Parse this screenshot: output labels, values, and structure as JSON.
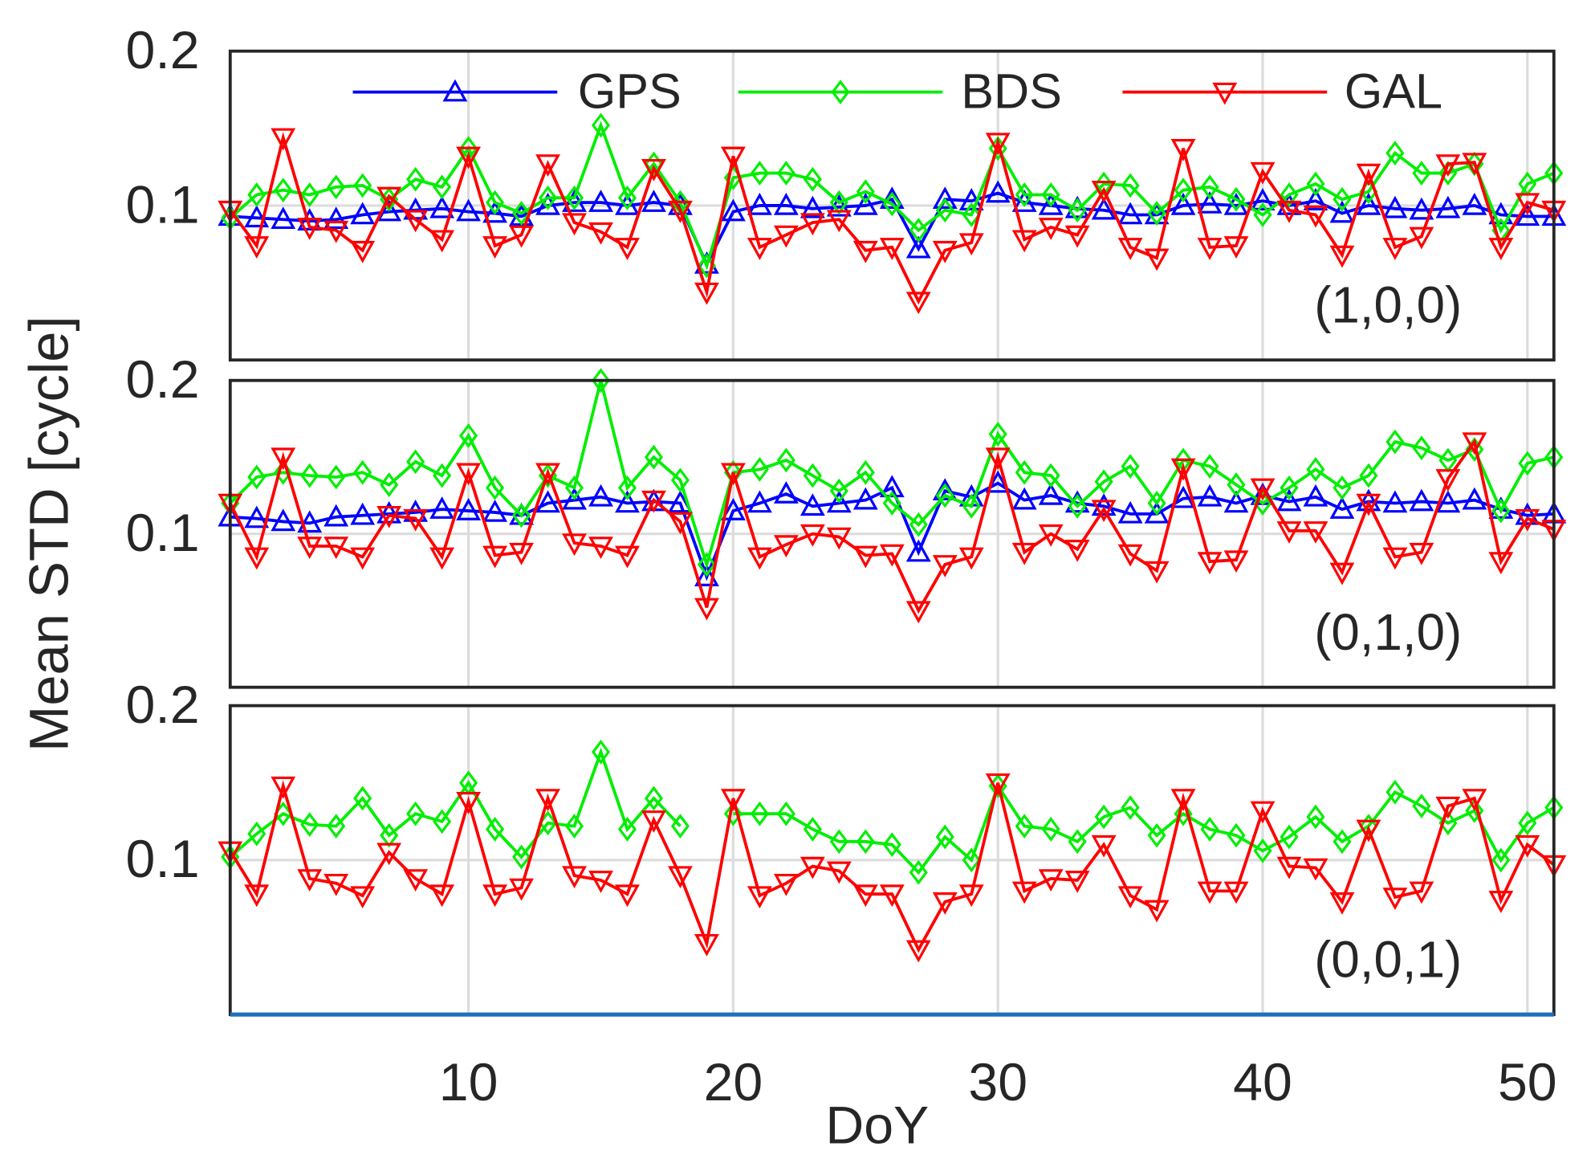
{
  "chart_data": [
    {
      "type": "line",
      "annotation": "(1,0,0)",
      "legend": "top",
      "xlim": [
        1,
        51
      ],
      "xticks": [
        10,
        20,
        30,
        40,
        50
      ],
      "ylim": [
        0,
        0.2
      ],
      "yticks": [
        0.1,
        0.2
      ],
      "grid": true,
      "x": [
        1,
        2,
        3,
        4,
        5,
        6,
        7,
        8,
        9,
        10,
        11,
        12,
        13,
        14,
        15,
        16,
        17,
        18,
        19,
        20,
        21,
        22,
        23,
        24,
        25,
        26,
        27,
        28,
        29,
        30,
        31,
        32,
        33,
        34,
        35,
        36,
        37,
        38,
        39,
        40,
        41,
        42,
        43,
        44,
        45,
        46,
        47,
        48,
        49,
        50,
        51
      ],
      "series": [
        {
          "name": "GPS",
          "color": "#0000ff",
          "marker": "^",
          "values": [
            0.093,
            0.092,
            0.091,
            0.09,
            0.091,
            0.094,
            0.096,
            0.097,
            0.098,
            0.096,
            0.095,
            0.093,
            0.1,
            0.102,
            0.102,
            0.1,
            0.102,
            0.1,
            0.062,
            0.096,
            0.1,
            0.1,
            0.098,
            0.099,
            0.1,
            0.104,
            0.072,
            0.104,
            0.103,
            0.108,
            0.102,
            0.1,
            0.098,
            0.097,
            0.094,
            0.094,
            0.1,
            0.101,
            0.1,
            0.103,
            0.1,
            0.103,
            0.095,
            0.1,
            0.098,
            0.097,
            0.098,
            0.1,
            0.094,
            0.093,
            0.093
          ]
        },
        {
          "name": "BDS",
          "color": "#00ee00",
          "marker": "d",
          "values": [
            0.092,
            0.107,
            0.11,
            0.107,
            0.112,
            0.113,
            0.104,
            0.117,
            0.112,
            0.137,
            0.102,
            0.095,
            0.105,
            0.105,
            0.152,
            0.105,
            0.127,
            0.102,
            0.061,
            0.118,
            0.121,
            0.121,
            0.117,
            0.102,
            0.109,
            0.101,
            0.084,
            0.097,
            0.094,
            0.137,
            0.107,
            0.107,
            0.097,
            0.114,
            0.113,
            0.095,
            0.11,
            0.112,
            0.104,
            0.094,
            0.107,
            0.114,
            0.104,
            0.109,
            0.134,
            0.121,
            0.121,
            0.127,
            0.084,
            0.114,
            0.121
          ]
        },
        {
          "name": "GAL",
          "color": "#ff0000",
          "marker": "v",
          "values": [
            0.097,
            0.074,
            0.144,
            0.086,
            0.084,
            0.071,
            0.106,
            0.091,
            0.078,
            0.132,
            0.074,
            0.081,
            0.127,
            0.089,
            0.083,
            0.073,
            0.124,
            0.097,
            0.044,
            0.132,
            0.073,
            0.081,
            0.089,
            0.091,
            0.071,
            0.073,
            0.038,
            0.071,
            0.076,
            0.141,
            0.078,
            0.086,
            0.081,
            0.11,
            0.073,
            0.066,
            0.137,
            0.073,
            0.074,
            0.122,
            0.097,
            0.094,
            0.068,
            0.121,
            0.073,
            0.08,
            0.127,
            0.128,
            0.073,
            0.102,
            0.097
          ]
        }
      ]
    },
    {
      "type": "line",
      "annotation": "(0,1,0)",
      "ylabel": "Mean STD [cycle]",
      "xlim": [
        1,
        51
      ],
      "xticks": [
        10,
        20,
        30,
        40,
        50
      ],
      "ylim": [
        0,
        0.2
      ],
      "yticks": [
        0.1,
        0.2
      ],
      "grid": true,
      "x": [
        1,
        2,
        3,
        4,
        5,
        6,
        7,
        8,
        9,
        10,
        11,
        12,
        13,
        14,
        15,
        16,
        17,
        18,
        19,
        20,
        21,
        22,
        23,
        24,
        25,
        26,
        27,
        28,
        29,
        30,
        31,
        32,
        33,
        34,
        35,
        36,
        37,
        38,
        39,
        40,
        41,
        42,
        43,
        44,
        45,
        46,
        47,
        48,
        49,
        50,
        51
      ],
      "series": [
        {
          "name": "GPS",
          "color": "#0000ff",
          "marker": "^",
          "values": [
            0.111,
            0.11,
            0.108,
            0.107,
            0.111,
            0.112,
            0.113,
            0.114,
            0.116,
            0.115,
            0.114,
            0.112,
            0.12,
            0.122,
            0.124,
            0.12,
            0.121,
            0.12,
            0.072,
            0.115,
            0.12,
            0.126,
            0.118,
            0.12,
            0.122,
            0.13,
            0.088,
            0.128,
            0.124,
            0.133,
            0.122,
            0.125,
            0.12,
            0.118,
            0.113,
            0.113,
            0.123,
            0.124,
            0.12,
            0.125,
            0.121,
            0.124,
            0.116,
            0.121,
            0.12,
            0.121,
            0.12,
            0.122,
            0.116,
            0.112,
            0.113
          ]
        },
        {
          "name": "BDS",
          "color": "#00ee00",
          "marker": "d",
          "values": [
            0.12,
            0.137,
            0.14,
            0.138,
            0.137,
            0.14,
            0.132,
            0.147,
            0.138,
            0.164,
            0.13,
            0.112,
            0.138,
            0.13,
            0.2,
            0.13,
            0.15,
            0.135,
            0.08,
            0.14,
            0.142,
            0.148,
            0.138,
            0.128,
            0.14,
            0.12,
            0.106,
            0.125,
            0.118,
            0.165,
            0.14,
            0.138,
            0.118,
            0.134,
            0.144,
            0.12,
            0.148,
            0.144,
            0.132,
            0.12,
            0.13,
            0.142,
            0.13,
            0.138,
            0.16,
            0.156,
            0.148,
            0.155,
            0.115,
            0.146,
            0.15
          ]
        },
        {
          "name": "GAL",
          "color": "#ff0000",
          "marker": "v",
          "values": [
            0.12,
            0.085,
            0.15,
            0.092,
            0.092,
            0.085,
            0.112,
            0.11,
            0.085,
            0.14,
            0.086,
            0.088,
            0.14,
            0.094,
            0.092,
            0.086,
            0.122,
            0.108,
            0.052,
            0.14,
            0.085,
            0.093,
            0.1,
            0.098,
            0.086,
            0.087,
            0.05,
            0.08,
            0.085,
            0.15,
            0.088,
            0.1,
            0.09,
            0.116,
            0.087,
            0.076,
            0.143,
            0.082,
            0.083,
            0.13,
            0.102,
            0.102,
            0.075,
            0.12,
            0.085,
            0.088,
            0.136,
            0.16,
            0.082,
            0.11,
            0.103
          ]
        }
      ]
    },
    {
      "type": "line",
      "annotation": "(0,0,1)",
      "xlabel": "DoY",
      "xlim": [
        1,
        51
      ],
      "xticks": [
        10,
        20,
        30,
        40,
        50
      ],
      "ylim": [
        0,
        0.2
      ],
      "yticks": [
        0.1,
        0.2
      ],
      "grid": true,
      "x": [
        1,
        2,
        3,
        4,
        5,
        6,
        7,
        8,
        9,
        10,
        11,
        12,
        13,
        14,
        15,
        16,
        17,
        18,
        19,
        20,
        21,
        22,
        23,
        24,
        25,
        26,
        27,
        28,
        29,
        30,
        31,
        32,
        33,
        34,
        35,
        36,
        37,
        38,
        39,
        40,
        41,
        42,
        43,
        44,
        45,
        46,
        47,
        48,
        49,
        50,
        51
      ],
      "series": [
        {
          "name": "BDS",
          "color": "#00ee00",
          "marker": "d",
          "values": [
            0.102,
            0.117,
            0.13,
            0.123,
            0.122,
            0.14,
            0.116,
            0.13,
            0.125,
            0.15,
            0.12,
            0.102,
            0.124,
            0.122,
            0.17,
            0.12,
            0.14,
            0.122,
            null,
            0.13,
            0.13,
            0.13,
            0.12,
            0.112,
            0.112,
            0.11,
            0.092,
            0.115,
            0.1,
            0.148,
            0.122,
            0.12,
            0.112,
            0.128,
            0.134,
            0.116,
            0.13,
            0.12,
            0.116,
            0.106,
            0.115,
            0.128,
            0.112,
            0.122,
            0.144,
            0.135,
            0.124,
            0.132,
            0.1,
            0.124,
            0.134
          ]
        },
        {
          "name": "GAL",
          "color": "#ff0000",
          "marker": "v",
          "values": [
            0.106,
            0.078,
            0.148,
            0.088,
            0.085,
            0.077,
            0.105,
            0.088,
            0.078,
            0.138,
            0.078,
            0.082,
            0.14,
            0.09,
            0.087,
            0.078,
            0.126,
            0.09,
            0.046,
            0.14,
            0.077,
            0.085,
            0.096,
            0.093,
            0.078,
            0.078,
            0.042,
            0.073,
            0.078,
            0.15,
            0.08,
            0.088,
            0.087,
            0.11,
            0.077,
            0.068,
            0.14,
            0.08,
            0.08,
            0.132,
            0.096,
            0.095,
            0.073,
            0.12,
            0.076,
            0.08,
            0.135,
            0.14,
            0.074,
            0.11,
            0.097
          ]
        }
      ]
    }
  ]
}
